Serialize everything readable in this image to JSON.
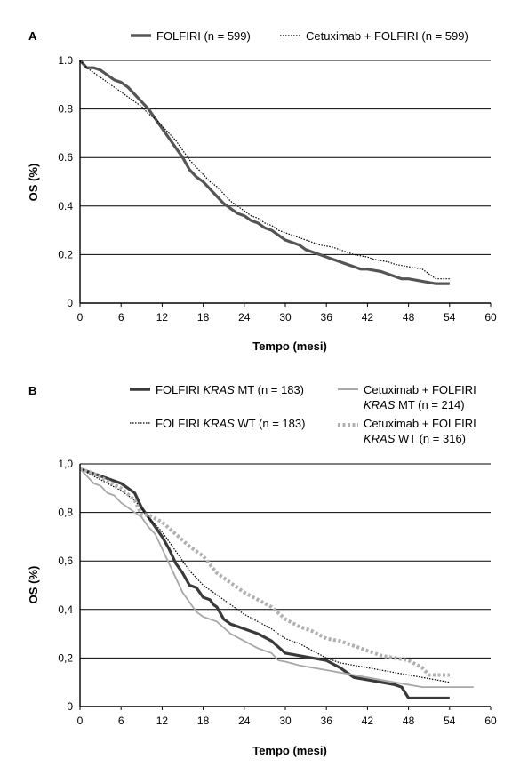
{
  "colors": {
    "folfiri": "#555555",
    "cetux_folfiri": "#000000",
    "kras_mt_folfiri": "#3a3a3a",
    "kras_wt_folfiri": "#000000",
    "kras_mt_cetux": "#a8a8a8",
    "kras_wt_cetux": "#b0b0b0",
    "grid": "#000000"
  },
  "chart_data": [
    {
      "panel": "A",
      "type": "line",
      "xlabel": "Tempo (mesi)",
      "ylabel": "OS (%)",
      "xlim": [
        0,
        60
      ],
      "ylim": [
        0,
        1.0
      ],
      "xticks": [
        "0",
        "6",
        "12",
        "18",
        "24",
        "30",
        "36",
        "42",
        "48",
        "54",
        "60"
      ],
      "yticks": [
        "0",
        "0.2",
        "0.4",
        "0.6",
        "0.8",
        "1.0"
      ],
      "grid": "horizontal",
      "legend": "top",
      "series": [
        {
          "name": "FOLFIRI (n = 599)",
          "style": "solid-thick",
          "color_key": "folfiri",
          "x": [
            0,
            1,
            2,
            3,
            4,
            5,
            6,
            7,
            8,
            9,
            10,
            11,
            12,
            13,
            14,
            15,
            16,
            17,
            18,
            19,
            20,
            21,
            22,
            23,
            24,
            25,
            26,
            27,
            28,
            29,
            30,
            31,
            32,
            33,
            34,
            35,
            36,
            37,
            38,
            39,
            40,
            41,
            42,
            43,
            44,
            45,
            46,
            47,
            48,
            49,
            50,
            51,
            52,
            53,
            54
          ],
          "y": [
            1.0,
            0.97,
            0.97,
            0.96,
            0.94,
            0.92,
            0.91,
            0.89,
            0.86,
            0.83,
            0.8,
            0.76,
            0.72,
            0.68,
            0.64,
            0.6,
            0.55,
            0.52,
            0.5,
            0.47,
            0.44,
            0.41,
            0.39,
            0.37,
            0.36,
            0.34,
            0.33,
            0.31,
            0.3,
            0.28,
            0.26,
            0.25,
            0.24,
            0.22,
            0.21,
            0.2,
            0.19,
            0.18,
            0.17,
            0.16,
            0.15,
            0.14,
            0.14,
            0.135,
            0.13,
            0.12,
            0.11,
            0.1,
            0.1,
            0.095,
            0.09,
            0.085,
            0.08,
            0.08,
            0.08
          ]
        },
        {
          "name": "Cetuximab + FOLFIRI (n = 599)",
          "style": "dotted",
          "color_key": "cetux_folfiri",
          "x": [
            0,
            1,
            2,
            3,
            4,
            5,
            6,
            7,
            8,
            9,
            10,
            11,
            12,
            13,
            14,
            15,
            16,
            17,
            18,
            19,
            20,
            21,
            22,
            23,
            24,
            25,
            26,
            27,
            28,
            29,
            30,
            31,
            32,
            33,
            34,
            35,
            36,
            37,
            38,
            39,
            40,
            41,
            42,
            43,
            44,
            45,
            46,
            47,
            48,
            49,
            50,
            51,
            52,
            53,
            54
          ],
          "y": [
            1.0,
            0.97,
            0.95,
            0.93,
            0.91,
            0.89,
            0.87,
            0.85,
            0.83,
            0.81,
            0.78,
            0.76,
            0.73,
            0.7,
            0.67,
            0.63,
            0.59,
            0.56,
            0.53,
            0.5,
            0.48,
            0.45,
            0.42,
            0.4,
            0.38,
            0.36,
            0.35,
            0.33,
            0.32,
            0.3,
            0.29,
            0.28,
            0.27,
            0.26,
            0.25,
            0.24,
            0.235,
            0.23,
            0.22,
            0.21,
            0.2,
            0.195,
            0.19,
            0.18,
            0.175,
            0.17,
            0.16,
            0.155,
            0.15,
            0.145,
            0.14,
            0.12,
            0.1,
            0.1,
            0.1
          ]
        }
      ]
    },
    {
      "panel": "B",
      "type": "line",
      "xlabel": "Tempo (mesi)",
      "ylabel": "OS (%)",
      "xlim": [
        0,
        60
      ],
      "ylim": [
        0,
        1.0
      ],
      "xticks": [
        "0",
        "6",
        "12",
        "18",
        "24",
        "30",
        "36",
        "42",
        "48",
        "54",
        "60"
      ],
      "yticks": [
        "0",
        "0,2",
        "0,4",
        "0,6",
        "0,8",
        "1,0"
      ],
      "grid": "horizontal",
      "legend": "top",
      "series": [
        {
          "name": "FOLFIRI KRAS MT (n = 183)",
          "style": "solid-thick",
          "color_key": "kras_mt_folfiri",
          "x": [
            0,
            2,
            4,
            6,
            7,
            8,
            9,
            10,
            11,
            12,
            13,
            14,
            15,
            16,
            17,
            18,
            19,
            19.5,
            20,
            21,
            22,
            24,
            26,
            28,
            30,
            32,
            34,
            36,
            38,
            40,
            42,
            44,
            46,
            47,
            48,
            50,
            52,
            54
          ],
          "y": [
            0.98,
            0.96,
            0.94,
            0.92,
            0.9,
            0.88,
            0.82,
            0.78,
            0.74,
            0.7,
            0.65,
            0.59,
            0.55,
            0.5,
            0.49,
            0.45,
            0.44,
            0.42,
            0.41,
            0.36,
            0.34,
            0.32,
            0.3,
            0.27,
            0.22,
            0.21,
            0.2,
            0.19,
            0.16,
            0.12,
            0.11,
            0.1,
            0.09,
            0.08,
            0.035,
            0.035,
            0.035,
            0.035
          ]
        },
        {
          "name": "FOLFIRI KRAS WT (n = 183)",
          "style": "dotted",
          "color_key": "kras_wt_folfiri",
          "x": [
            0,
            2,
            4,
            6,
            8,
            10,
            12,
            14,
            16,
            18,
            20,
            22,
            24,
            26,
            28,
            30,
            32,
            34,
            36,
            38,
            40,
            42,
            44,
            46,
            48,
            50,
            52,
            54
          ],
          "y": [
            0.98,
            0.95,
            0.92,
            0.89,
            0.85,
            0.78,
            0.72,
            0.64,
            0.56,
            0.5,
            0.46,
            0.42,
            0.38,
            0.35,
            0.32,
            0.28,
            0.26,
            0.23,
            0.2,
            0.18,
            0.17,
            0.16,
            0.15,
            0.14,
            0.13,
            0.12,
            0.11,
            0.1
          ]
        },
        {
          "name": "Cetuximab + FOLFIRI KRAS MT (n = 214)",
          "style": "solid-thin",
          "color_key": "kras_mt_cetux",
          "x": [
            0,
            1,
            2,
            3,
            4,
            5,
            6,
            7,
            8,
            9,
            10,
            11,
            12,
            13,
            14,
            15,
            16,
            17,
            18,
            19,
            20,
            22,
            24,
            26,
            28,
            29,
            30,
            32,
            34,
            36,
            38,
            40,
            42,
            44,
            46,
            48,
            50,
            52,
            54,
            56,
            57.5
          ],
          "y": [
            0.98,
            0.95,
            0.92,
            0.91,
            0.88,
            0.87,
            0.84,
            0.82,
            0.8,
            0.78,
            0.74,
            0.71,
            0.65,
            0.59,
            0.53,
            0.47,
            0.43,
            0.39,
            0.37,
            0.36,
            0.35,
            0.3,
            0.27,
            0.24,
            0.22,
            0.19,
            0.185,
            0.17,
            0.16,
            0.15,
            0.14,
            0.13,
            0.12,
            0.11,
            0.1,
            0.09,
            0.08,
            0.08,
            0.08,
            0.08,
            0.08
          ]
        },
        {
          "name": "Cetuximab + FOLFIRI KRAS WT (n = 316)",
          "style": "dotted-thick",
          "color_key": "kras_wt_cetux",
          "x": [
            0,
            2,
            4,
            6,
            8,
            9,
            10,
            12,
            14,
            16,
            18,
            20,
            22,
            24,
            26,
            28,
            30,
            32,
            34,
            36,
            38,
            40,
            42,
            44,
            46,
            48,
            50,
            51,
            52,
            53,
            54
          ],
          "y": [
            0.98,
            0.96,
            0.93,
            0.9,
            0.85,
            0.79,
            0.79,
            0.76,
            0.71,
            0.66,
            0.62,
            0.55,
            0.51,
            0.47,
            0.44,
            0.41,
            0.36,
            0.33,
            0.31,
            0.28,
            0.27,
            0.25,
            0.23,
            0.21,
            0.2,
            0.19,
            0.16,
            0.13,
            0.13,
            0.13,
            0.13
          ]
        }
      ]
    }
  ],
  "panels": {
    "a": {
      "letter": "A",
      "legend": [
        {
          "label": "FOLFIRI (n = 599)"
        },
        {
          "label": "Cetuximab + FOLFIRI (n = 599)"
        }
      ]
    },
    "b": {
      "letter": "B",
      "legend": [
        {
          "parts": [
            "FOLFIRI ",
            "KRAS",
            " MT (n = 183)"
          ]
        },
        {
          "parts": [
            "FOLFIRI ",
            "KRAS",
            " WT (n = 183)"
          ]
        },
        {
          "line1": "Cetuximab + FOLFIRI",
          "parts": [
            "",
            "KRAS",
            " MT (n = 214)"
          ]
        },
        {
          "line1": "Cetuximab + FOLFIRI",
          "parts": [
            "",
            "KRAS",
            " WT (n = 316)"
          ]
        }
      ]
    }
  }
}
